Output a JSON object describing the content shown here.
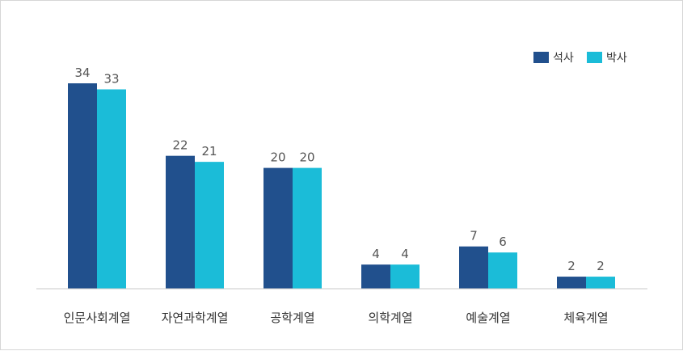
{
  "chart_data": {
    "type": "bar",
    "categories": [
      "인문사회계열",
      "자연과학계열",
      "공학계열",
      "의학계열",
      "예술계열",
      "체육계열"
    ],
    "series": [
      {
        "name": "석사",
        "values": [
          34,
          22,
          20,
          4,
          7,
          2
        ],
        "color": "#21508d"
      },
      {
        "name": "박사",
        "values": [
          33,
          21,
          20,
          4,
          6,
          2
        ],
        "color": "#1bbcd8"
      }
    ],
    "ylim": [
      0,
      34
    ],
    "grid": false,
    "data_labels": true,
    "legend_position": "top-right",
    "axis_color": "#c8c8c8"
  }
}
